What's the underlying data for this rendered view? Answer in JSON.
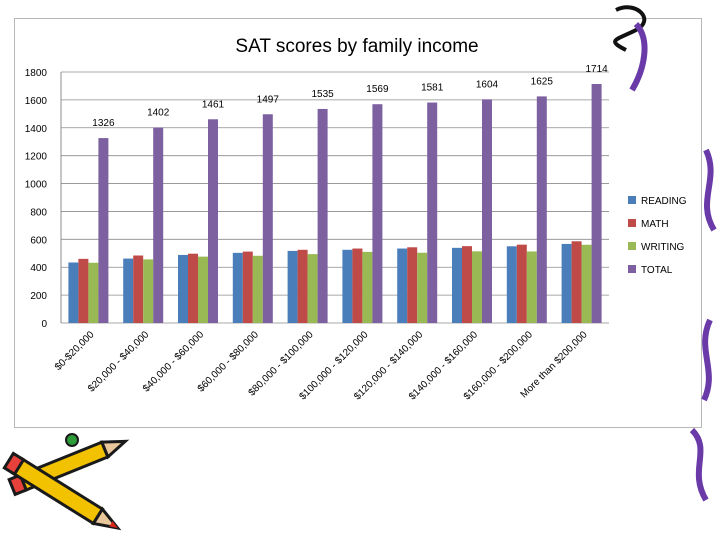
{
  "chart_data": {
    "type": "bar",
    "title": "SAT scores by family income",
    "xlabel": "",
    "ylabel": "",
    "ylim": [
      0,
      1800
    ],
    "yticks": [
      0,
      200,
      400,
      600,
      800,
      1000,
      1200,
      1400,
      1600,
      1800
    ],
    "grid": true,
    "legend_position": "right",
    "categories": [
      "$0-$20,000",
      "$20,000 - $40,000",
      "$40,000 - $60,000",
      "$60,000 - $80,000",
      "$80,000 - $100,000",
      "$100,000 - $120,000",
      "$120,000 - $140,000",
      "$140,000 - $160,000",
      "$160,000 - $200,000",
      "More than $200,000"
    ],
    "series": [
      {
        "name": "READING",
        "color": "#4a7ebb",
        "values": [
          434,
          462,
          488,
          503,
          517,
          525,
          534,
          539,
          550,
          567
        ]
      },
      {
        "name": "MATH",
        "color": "#be4b48",
        "values": [
          460,
          484,
          497,
          512,
          525,
          534,
          543,
          551,
          562,
          586
        ]
      },
      {
        "name": "WRITING",
        "color": "#98b954",
        "values": [
          432,
          456,
          476,
          482,
          494,
          510,
          504,
          514,
          513,
          561
        ]
      },
      {
        "name": "TOTAL",
        "color": "#7d60a0",
        "values": [
          1326,
          1402,
          1461,
          1497,
          1535,
          1569,
          1581,
          1604,
          1625,
          1714
        ]
      }
    ],
    "data_labels_series": "TOTAL"
  }
}
